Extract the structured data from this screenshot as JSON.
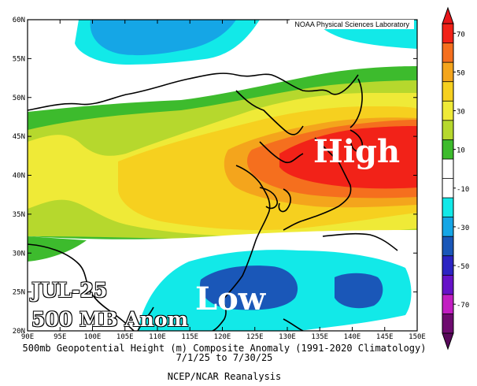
{
  "credit": "NOAA Physical Sciences Laboratory",
  "overlay": {
    "line1": "JUL-25",
    "line2": "500 MB Anom"
  },
  "labels": {
    "high": "High",
    "low": "Low"
  },
  "caption": {
    "line1": "500mb Geopotential Height (m) Composite Anomaly (1991-2020 Climatology)",
    "line2": "7/1/25  to 7/30/25",
    "line3": "NCEP/NCAR Reanalysis"
  },
  "lat_labels": [
    "60N",
    "55N",
    "50N",
    "45N",
    "40N",
    "35N",
    "30N",
    "25N",
    "20N"
  ],
  "lon_labels": [
    "90E",
    "95E",
    "100E",
    "105E",
    "110E",
    "115E",
    "120E",
    "125E",
    "130E",
    "135E",
    "140E",
    "145E",
    "150E"
  ],
  "colorbar": {
    "labels": [
      "70",
      "50",
      "30",
      "10",
      "-10",
      "-30",
      "-50",
      "-70"
    ],
    "colors": [
      "#f22218",
      "#f56f1e",
      "#f4a51c",
      "#f6d01f",
      "#efea37",
      "#b6d82d",
      "#3dbb2d",
      "#ffffff",
      "#ffffff",
      "#12e9e8",
      "#15a6e6",
      "#1a57b8",
      "#2c24c3",
      "#6612c8",
      "#c21ec2",
      "#6e0b6f"
    ],
    "value_range": [
      -70,
      70
    ]
  }
}
